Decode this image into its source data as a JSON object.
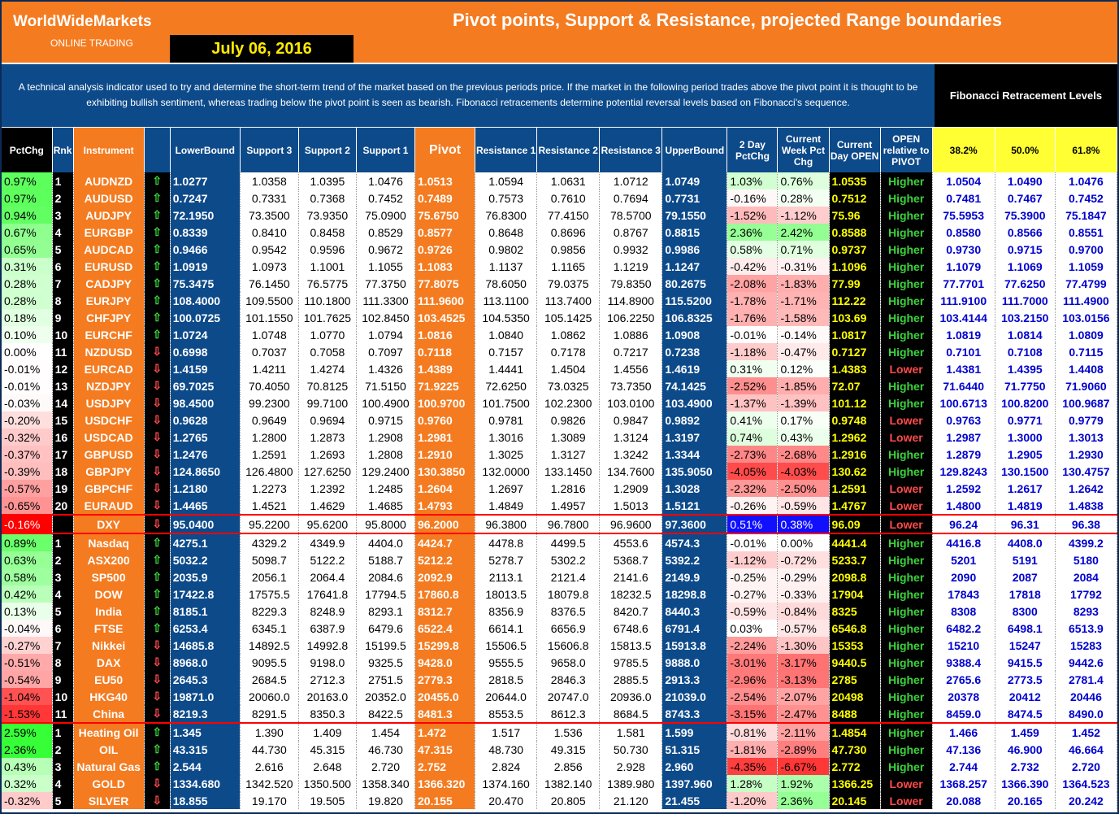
{
  "header": {
    "brand": "WorldWideMarkets",
    "brand_sub": "ONLINE TRADING",
    "title": "Pivot points, Support & Resistance, projected Range boundaries",
    "date": "July 06, 2016"
  },
  "description": "A technical analysis indicator used to try and determine the short-term trend of the market based on the previous periods price. If the market in the following period trades above the pivot point it is thought to be exhibiting bullish sentiment, whereas trading below the pivot point is seen as bearish. Fibonacci retracements determine potential reversal levels based on Fibonacci's sequence.",
  "fib_title": "Fibonacci Retracement Levels",
  "columns": {
    "pctchg": "PctChg",
    "rnk": "Rnk",
    "instrument": "Instrument",
    "lower": "LowerBound",
    "s3": "Support 3",
    "s2": "Support 2",
    "s1": "Support 1",
    "pivot": "Pivot",
    "r1": "Resistance 1",
    "r2": "Resistance 2",
    "r3": "Resistance 3",
    "upper": "UpperBound",
    "chg2": "2 Day PctChg",
    "wk": "Current Week Pct Chg",
    "open": "Current Day OPEN",
    "rel": "OPEN relative to PIVOT",
    "f1": "38.2%",
    "f2": "50.0%",
    "f3": "61.8%"
  },
  "colors": {
    "orange": "#f47b20",
    "navy": "#0d4a8a",
    "yellow": "#ffff33",
    "green": "#3bd23b",
    "red": "#ff4a4a"
  },
  "rows": [
    [
      "0.97%",
      "1",
      "AUDNZD",
      "up",
      "1.0277",
      "1.0358",
      "1.0395",
      "1.0476",
      "1.0513",
      "1.0594",
      "1.0631",
      "1.0712",
      "1.0749",
      "1.03%",
      "0.76%",
      "1.0535",
      "Higher",
      "1.0504",
      "1.0490",
      "1.0476"
    ],
    [
      "0.97%",
      "2",
      "AUDUSD",
      "up",
      "0.7247",
      "0.7331",
      "0.7368",
      "0.7452",
      "0.7489",
      "0.7573",
      "0.7610",
      "0.7694",
      "0.7731",
      "-0.16%",
      "0.28%",
      "0.7512",
      "Higher",
      "0.7481",
      "0.7467",
      "0.7452"
    ],
    [
      "0.94%",
      "3",
      "AUDJPY",
      "up",
      "72.1950",
      "73.3500",
      "73.9350",
      "75.0900",
      "75.6750",
      "76.8300",
      "77.4150",
      "78.5700",
      "79.1550",
      "-1.52%",
      "-1.12%",
      "75.96",
      "Higher",
      "75.5953",
      "75.3900",
      "75.1847"
    ],
    [
      "0.67%",
      "4",
      "EURGBP",
      "up",
      "0.8339",
      "0.8410",
      "0.8458",
      "0.8529",
      "0.8577",
      "0.8648",
      "0.8696",
      "0.8767",
      "0.8815",
      "2.36%",
      "2.42%",
      "0.8588",
      "Higher",
      "0.8580",
      "0.8566",
      "0.8551"
    ],
    [
      "0.65%",
      "5",
      "AUDCAD",
      "up",
      "0.9466",
      "0.9542",
      "0.9596",
      "0.9672",
      "0.9726",
      "0.9802",
      "0.9856",
      "0.9932",
      "0.9986",
      "0.58%",
      "0.71%",
      "0.9737",
      "Higher",
      "0.9730",
      "0.9715",
      "0.9700"
    ],
    [
      "0.31%",
      "6",
      "EURUSD",
      "up",
      "1.0919",
      "1.0973",
      "1.1001",
      "1.1055",
      "1.1083",
      "1.1137",
      "1.1165",
      "1.1219",
      "1.1247",
      "-0.42%",
      "-0.31%",
      "1.1096",
      "Higher",
      "1.1079",
      "1.1069",
      "1.1059"
    ],
    [
      "0.28%",
      "7",
      "CADJPY",
      "up",
      "75.3475",
      "76.1450",
      "76.5775",
      "77.3750",
      "77.8075",
      "78.6050",
      "79.0375",
      "79.8350",
      "80.2675",
      "-2.08%",
      "-1.83%",
      "77.99",
      "Higher",
      "77.7701",
      "77.6250",
      "77.4799"
    ],
    [
      "0.28%",
      "8",
      "EURJPY",
      "up",
      "108.4000",
      "109.5500",
      "110.1800",
      "111.3300",
      "111.9600",
      "113.1100",
      "113.7400",
      "114.8900",
      "115.5200",
      "-1.78%",
      "-1.71%",
      "112.22",
      "Higher",
      "111.9100",
      "111.7000",
      "111.4900"
    ],
    [
      "0.18%",
      "9",
      "CHFJPY",
      "up",
      "100.0725",
      "101.1550",
      "101.7625",
      "102.8450",
      "103.4525",
      "104.5350",
      "105.1425",
      "106.2250",
      "106.8325",
      "-1.76%",
      "-1.58%",
      "103.69",
      "Higher",
      "103.4144",
      "103.2150",
      "103.0156"
    ],
    [
      "0.10%",
      "10",
      "EURCHF",
      "up",
      "1.0724",
      "1.0748",
      "1.0770",
      "1.0794",
      "1.0816",
      "1.0840",
      "1.0862",
      "1.0886",
      "1.0908",
      "-0.01%",
      "-0.14%",
      "1.0817",
      "Higher",
      "1.0819",
      "1.0814",
      "1.0809"
    ],
    [
      "0.00%",
      "11",
      "NZDUSD",
      "dn",
      "0.6998",
      "0.7037",
      "0.7058",
      "0.7097",
      "0.7118",
      "0.7157",
      "0.7178",
      "0.7217",
      "0.7238",
      "-1.18%",
      "-0.47%",
      "0.7127",
      "Higher",
      "0.7101",
      "0.7108",
      "0.7115"
    ],
    [
      "-0.01%",
      "12",
      "EURCAD",
      "dn",
      "1.4159",
      "1.4211",
      "1.4274",
      "1.4326",
      "1.4389",
      "1.4441",
      "1.4504",
      "1.4556",
      "1.4619",
      "0.31%",
      "0.12%",
      "1.4383",
      "Lower",
      "1.4381",
      "1.4395",
      "1.4408"
    ],
    [
      "-0.01%",
      "13",
      "NZDJPY",
      "dn",
      "69.7025",
      "70.4050",
      "70.8125",
      "71.5150",
      "71.9225",
      "72.6250",
      "73.0325",
      "73.7350",
      "74.1425",
      "-2.52%",
      "-1.85%",
      "72.07",
      "Higher",
      "71.6440",
      "71.7750",
      "71.9060"
    ],
    [
      "-0.03%",
      "14",
      "USDJPY",
      "dn",
      "98.4500",
      "99.2300",
      "99.7100",
      "100.4900",
      "100.9700",
      "101.7500",
      "102.2300",
      "103.0100",
      "103.4900",
      "-1.37%",
      "-1.39%",
      "101.12",
      "Higher",
      "100.6713",
      "100.8200",
      "100.9687"
    ],
    [
      "-0.20%",
      "15",
      "USDCHF",
      "dn",
      "0.9628",
      "0.9649",
      "0.9694",
      "0.9715",
      "0.9760",
      "0.9781",
      "0.9826",
      "0.9847",
      "0.9892",
      "0.41%",
      "0.17%",
      "0.9748",
      "Lower",
      "0.9763",
      "0.9771",
      "0.9779"
    ],
    [
      "-0.32%",
      "16",
      "USDCAD",
      "dn",
      "1.2765",
      "1.2800",
      "1.2873",
      "1.2908",
      "1.2981",
      "1.3016",
      "1.3089",
      "1.3124",
      "1.3197",
      "0.74%",
      "0.43%",
      "1.2962",
      "Lower",
      "1.2987",
      "1.3000",
      "1.3013"
    ],
    [
      "-0.37%",
      "17",
      "GBPUSD",
      "dn",
      "1.2476",
      "1.2591",
      "1.2693",
      "1.2808",
      "1.2910",
      "1.3025",
      "1.3127",
      "1.3242",
      "1.3344",
      "-2.73%",
      "-2.68%",
      "1.2916",
      "Higher",
      "1.2879",
      "1.2905",
      "1.2930"
    ],
    [
      "-0.39%",
      "18",
      "GBPJPY",
      "dn",
      "124.8650",
      "126.4800",
      "127.6250",
      "129.2400",
      "130.3850",
      "132.0000",
      "133.1450",
      "134.7600",
      "135.9050",
      "-4.05%",
      "-4.03%",
      "130.62",
      "Higher",
      "129.8243",
      "130.1500",
      "130.4757"
    ],
    [
      "-0.57%",
      "19",
      "GBPCHF",
      "dn",
      "1.2180",
      "1.2273",
      "1.2392",
      "1.2485",
      "1.2604",
      "1.2697",
      "1.2816",
      "1.2909",
      "1.3028",
      "-2.32%",
      "-2.50%",
      "1.2591",
      "Lower",
      "1.2592",
      "1.2617",
      "1.2642"
    ],
    [
      "-0.65%",
      "20",
      "EURAUD",
      "dn",
      "1.4465",
      "1.4521",
      "1.4629",
      "1.4685",
      "1.4793",
      "1.4849",
      "1.4957",
      "1.5013",
      "1.5121",
      "-0.26%",
      "-0.59%",
      "1.4767",
      "Lower",
      "1.4800",
      "1.4819",
      "1.4838"
    ],
    [
      "-0.16%",
      "",
      "DXY",
      "dn",
      "95.0400",
      "95.2200",
      "95.6200",
      "95.8000",
      "96.2000",
      "96.3800",
      "96.7800",
      "96.9600",
      "97.3600",
      "0.51%",
      "0.38%",
      "96.09",
      "Lower",
      "96.24",
      "96.31",
      "96.38"
    ],
    [
      "0.89%",
      "1",
      "Nasdaq",
      "up",
      "4275.1",
      "4329.2",
      "4349.9",
      "4404.0",
      "4424.7",
      "4478.8",
      "4499.5",
      "4553.6",
      "4574.3",
      "-0.01%",
      "0.00%",
      "4441.4",
      "Higher",
      "4416.8",
      "4408.0",
      "4399.2"
    ],
    [
      "0.63%",
      "2",
      "ASX200",
      "up",
      "5032.2",
      "5098.7",
      "5122.2",
      "5188.7",
      "5212.2",
      "5278.7",
      "5302.2",
      "5368.7",
      "5392.2",
      "-1.12%",
      "-0.72%",
      "5233.7",
      "Higher",
      "5201",
      "5191",
      "5180"
    ],
    [
      "0.58%",
      "3",
      "SP500",
      "up",
      "2035.9",
      "2056.1",
      "2064.4",
      "2084.6",
      "2092.9",
      "2113.1",
      "2121.4",
      "2141.6",
      "2149.9",
      "-0.25%",
      "-0.29%",
      "2098.8",
      "Higher",
      "2090",
      "2087",
      "2084"
    ],
    [
      "0.42%",
      "4",
      "DOW",
      "up",
      "17422.8",
      "17575.5",
      "17641.8",
      "17794.5",
      "17860.8",
      "18013.5",
      "18079.8",
      "18232.5",
      "18298.8",
      "-0.27%",
      "-0.33%",
      "17904",
      "Higher",
      "17843",
      "17818",
      "17792"
    ],
    [
      "0.13%",
      "5",
      "India",
      "up",
      "8185.1",
      "8229.3",
      "8248.9",
      "8293.1",
      "8312.7",
      "8356.9",
      "8376.5",
      "8420.7",
      "8440.3",
      "-0.59%",
      "-0.84%",
      "8325",
      "Higher",
      "8308",
      "8300",
      "8293"
    ],
    [
      "-0.04%",
      "6",
      "FTSE",
      "up",
      "6253.4",
      "6345.1",
      "6387.9",
      "6479.6",
      "6522.4",
      "6614.1",
      "6656.9",
      "6748.6",
      "6791.4",
      "0.03%",
      "-0.57%",
      "6546.8",
      "Higher",
      "6482.2",
      "6498.1",
      "6513.9"
    ],
    [
      "-0.27%",
      "7",
      "Nikkei",
      "dn",
      "14685.8",
      "14892.5",
      "14992.8",
      "15199.5",
      "15299.8",
      "15506.5",
      "15606.8",
      "15813.5",
      "15913.8",
      "-2.24%",
      "-1.30%",
      "15353",
      "Higher",
      "15210",
      "15247",
      "15283"
    ],
    [
      "-0.51%",
      "8",
      "DAX",
      "dn",
      "8968.0",
      "9095.5",
      "9198.0",
      "9325.5",
      "9428.0",
      "9555.5",
      "9658.0",
      "9785.5",
      "9888.0",
      "-3.01%",
      "-3.17%",
      "9440.5",
      "Higher",
      "9388.4",
      "9415.5",
      "9442.6"
    ],
    [
      "-0.54%",
      "9",
      "EU50",
      "dn",
      "2645.3",
      "2684.5",
      "2712.3",
      "2751.5",
      "2779.3",
      "2818.5",
      "2846.3",
      "2885.5",
      "2913.3",
      "-2.96%",
      "-3.13%",
      "2785",
      "Higher",
      "2765.6",
      "2773.5",
      "2781.4"
    ],
    [
      "-1.04%",
      "10",
      "HKG40",
      "dn",
      "19871.0",
      "20060.0",
      "20163.0",
      "20352.0",
      "20455.0",
      "20644.0",
      "20747.0",
      "20936.0",
      "21039.0",
      "-2.54%",
      "-2.07%",
      "20498",
      "Higher",
      "20378",
      "20412",
      "20446"
    ],
    [
      "-1.53%",
      "11",
      "China",
      "dn",
      "8219.3",
      "8291.5",
      "8350.3",
      "8422.5",
      "8481.3",
      "8553.5",
      "8612.3",
      "8684.5",
      "8743.3",
      "-3.15%",
      "-2.47%",
      "8488",
      "Higher",
      "8459.0",
      "8474.5",
      "8490.0"
    ],
    [
      "2.59%",
      "1",
      "Heating Oil",
      "up",
      "1.345",
      "1.390",
      "1.409",
      "1.454",
      "1.472",
      "1.517",
      "1.536",
      "1.581",
      "1.599",
      "-0.81%",
      "-2.11%",
      "1.4854",
      "Higher",
      "1.466",
      "1.459",
      "1.452"
    ],
    [
      "2.36%",
      "2",
      "OIL",
      "up",
      "43.315",
      "44.730",
      "45.315",
      "46.730",
      "47.315",
      "48.730",
      "49.315",
      "50.730",
      "51.315",
      "-1.81%",
      "-2.89%",
      "47.730",
      "Higher",
      "47.136",
      "46.900",
      "46.664"
    ],
    [
      "0.43%",
      "3",
      "Natural Gas",
      "up",
      "2.544",
      "2.616",
      "2.648",
      "2.720",
      "2.752",
      "2.824",
      "2.856",
      "2.928",
      "2.960",
      "-4.35%",
      "-6.67%",
      "2.772",
      "Higher",
      "2.744",
      "2.732",
      "2.720"
    ],
    [
      "0.32%",
      "4",
      "GOLD",
      "dn",
      "1334.680",
      "1342.520",
      "1350.500",
      "1358.340",
      "1366.320",
      "1374.160",
      "1382.140",
      "1389.980",
      "1397.960",
      "1.28%",
      "1.92%",
      "1366.25",
      "Lower",
      "1368.257",
      "1366.390",
      "1364.523"
    ],
    [
      "-0.32%",
      "5",
      "SILVER",
      "dn",
      "18.855",
      "19.170",
      "19.505",
      "19.820",
      "20.155",
      "20.470",
      "20.805",
      "21.120",
      "21.455",
      "-1.20%",
      "2.36%",
      "20.145",
      "Lower",
      "20.088",
      "20.165",
      "20.242"
    ]
  ]
}
